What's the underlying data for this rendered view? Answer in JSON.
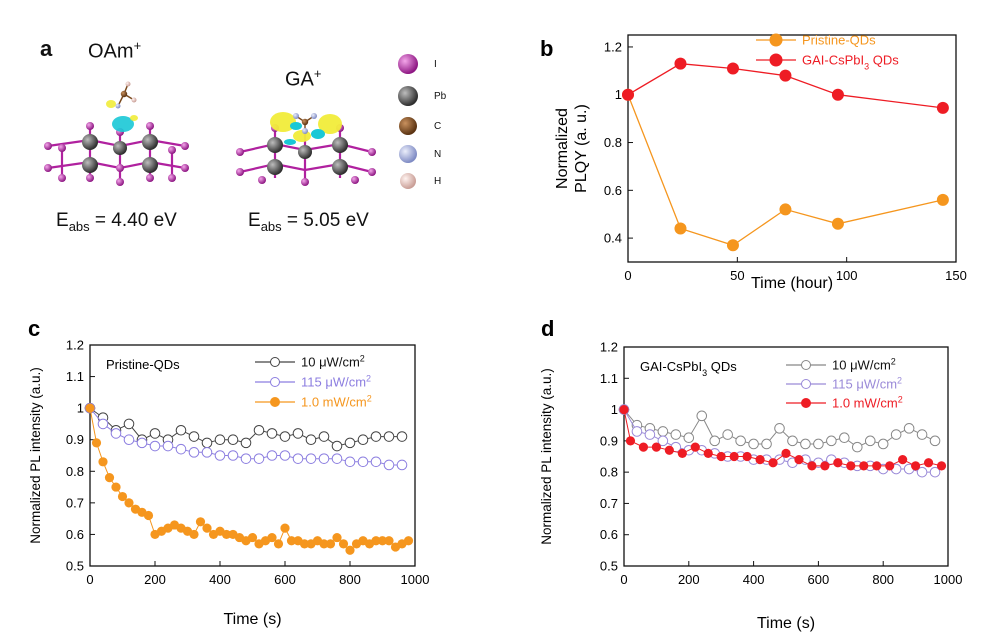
{
  "panel_a": {
    "letter": "a",
    "mol1_label": "OAm",
    "mol1_sup": "+",
    "mol2_label": "GA",
    "mol2_sup": "+",
    "energy1_prefix": "E",
    "energy1_sub": "abs",
    "energy1_value": " = 4.40 eV",
    "energy2_prefix": "E",
    "energy2_sub": "abs",
    "energy2_value": " = 5.05 eV",
    "legend": [
      {
        "element": "I",
        "color": "#b0219f"
      },
      {
        "element": "Pb",
        "color": "#555555"
      },
      {
        "element": "C",
        "color": "#7a4a1e"
      },
      {
        "element": "N",
        "color": "#a8b3e0"
      },
      {
        "element": "H",
        "color": "#e8c4bd"
      }
    ]
  },
  "chart_data": [
    {
      "panel": "b",
      "type": "line",
      "xlabel": "Time (hour)",
      "ylabel": "Normalized PLQY (a. u.)",
      "xlim": [
        0,
        150
      ],
      "ylim": [
        0.3,
        1.25
      ],
      "xticks": [
        0,
        50,
        100,
        150
      ],
      "yticks": [
        0.4,
        0.6,
        0.8,
        1,
        1.2
      ],
      "ytick_labels": [
        "0.4",
        "0.6",
        "0.8",
        "1",
        "1.2"
      ],
      "legend_position": "top-right",
      "series": [
        {
          "name": "Pristine-QDs",
          "color": "#f5961e",
          "x": [
            0,
            24,
            48,
            72,
            96,
            144
          ],
          "y": [
            1.0,
            0.44,
            0.37,
            0.52,
            0.46,
            0.56
          ]
        },
        {
          "name": "GAI-CsPbI3 QDs",
          "color": "#ee1c24",
          "x": [
            0,
            24,
            48,
            72,
            96,
            144
          ],
          "y": [
            1.0,
            1.13,
            1.11,
            1.08,
            1.0,
            0.945
          ]
        }
      ]
    },
    {
      "panel": "c",
      "type": "line",
      "title": "Pristine-QDs",
      "xlabel": "Time (s)",
      "ylabel": "Normalized PL intensity (a.u.)",
      "xlim": [
        0,
        1000
      ],
      "ylim": [
        0.5,
        1.2
      ],
      "xticks": [
        0,
        200,
        400,
        600,
        800,
        1000
      ],
      "yticks": [
        0.5,
        0.6,
        0.7,
        0.8,
        0.9,
        1,
        1.1,
        1.2
      ],
      "ytick_labels": [
        "0.5",
        "0.6",
        "0.7",
        "0.8",
        "0.9",
        "1",
        "1.1",
        "1.2"
      ],
      "legend_position": "top-right",
      "series": [
        {
          "name": "10 μW/cm²",
          "color": "#444444",
          "marker": "open-circle",
          "x": [
            0,
            40,
            80,
            120,
            160,
            200,
            240,
            280,
            320,
            360,
            400,
            440,
            480,
            520,
            560,
            600,
            640,
            680,
            720,
            760,
            800,
            840,
            880,
            920,
            960
          ],
          "y": [
            1.0,
            0.97,
            0.93,
            0.95,
            0.9,
            0.92,
            0.9,
            0.93,
            0.91,
            0.89,
            0.9,
            0.9,
            0.89,
            0.93,
            0.92,
            0.91,
            0.92,
            0.9,
            0.91,
            0.88,
            0.89,
            0.9,
            0.91,
            0.91,
            0.91
          ]
        },
        {
          "name": "115 μW/cm²",
          "color": "#8c7ee0",
          "marker": "open-circle",
          "x": [
            0,
            40,
            80,
            120,
            160,
            200,
            240,
            280,
            320,
            360,
            400,
            440,
            480,
            520,
            560,
            600,
            640,
            680,
            720,
            760,
            800,
            840,
            880,
            920,
            960
          ],
          "y": [
            1.0,
            0.95,
            0.92,
            0.9,
            0.89,
            0.88,
            0.88,
            0.87,
            0.86,
            0.86,
            0.85,
            0.85,
            0.84,
            0.84,
            0.85,
            0.85,
            0.84,
            0.84,
            0.84,
            0.84,
            0.83,
            0.83,
            0.83,
            0.82,
            0.82
          ]
        },
        {
          "name": "1.0 mW/cm²",
          "color": "#f5961e",
          "marker": "filled-circle",
          "x": [
            0,
            20,
            40,
            60,
            80,
            100,
            120,
            140,
            160,
            180,
            200,
            220,
            240,
            260,
            280,
            300,
            320,
            340,
            360,
            380,
            400,
            420,
            440,
            460,
            480,
            500,
            520,
            540,
            560,
            580,
            600,
            620,
            640,
            660,
            680,
            700,
            720,
            740,
            760,
            780,
            800,
            820,
            840,
            860,
            880,
            900,
            920,
            940,
            960,
            980
          ],
          "y": [
            1.0,
            0.89,
            0.83,
            0.78,
            0.75,
            0.72,
            0.7,
            0.68,
            0.67,
            0.66,
            0.6,
            0.61,
            0.62,
            0.63,
            0.62,
            0.61,
            0.6,
            0.64,
            0.62,
            0.6,
            0.61,
            0.6,
            0.6,
            0.59,
            0.58,
            0.59,
            0.57,
            0.58,
            0.59,
            0.57,
            0.62,
            0.58,
            0.58,
            0.57,
            0.57,
            0.58,
            0.57,
            0.57,
            0.59,
            0.57,
            0.55,
            0.57,
            0.58,
            0.57,
            0.58,
            0.58,
            0.58,
            0.56,
            0.57,
            0.58
          ]
        }
      ]
    },
    {
      "panel": "d",
      "type": "line",
      "title": "GAI-CsPbI3 QDs",
      "xlabel": "Time (s)",
      "ylabel": "Normalized PL intensity (a.u.)",
      "xlim": [
        0,
        1000
      ],
      "ylim": [
        0.5,
        1.2
      ],
      "xticks": [
        0,
        200,
        400,
        600,
        800,
        1000
      ],
      "yticks": [
        0.5,
        0.6,
        0.7,
        0.8,
        0.9,
        1,
        1.1,
        1.2
      ],
      "ytick_labels": [
        "0.5",
        "0.6",
        "0.7",
        "0.8",
        "0.9",
        "1",
        "1.1",
        "1.2"
      ],
      "legend_position": "top-right",
      "series": [
        {
          "name": "10 μW/cm²",
          "color": "#888888",
          "marker": "open-circle",
          "x": [
            0,
            40,
            80,
            120,
            160,
            200,
            240,
            280,
            320,
            360,
            400,
            440,
            480,
            520,
            560,
            600,
            640,
            680,
            720,
            760,
            800,
            840,
            880,
            920,
            960
          ],
          "y": [
            1.0,
            0.95,
            0.94,
            0.93,
            0.92,
            0.91,
            0.98,
            0.9,
            0.92,
            0.9,
            0.89,
            0.89,
            0.94,
            0.9,
            0.89,
            0.89,
            0.9,
            0.91,
            0.88,
            0.9,
            0.89,
            0.92,
            0.94,
            0.92,
            0.9
          ]
        },
        {
          "name": "115 μW/cm²",
          "color": "#9a8ad8",
          "marker": "open-circle",
          "x": [
            0,
            40,
            80,
            120,
            160,
            200,
            240,
            280,
            320,
            360,
            400,
            440,
            480,
            520,
            560,
            600,
            640,
            680,
            720,
            760,
            800,
            840,
            880,
            920,
            960
          ],
          "y": [
            1.0,
            0.93,
            0.92,
            0.9,
            0.88,
            0.87,
            0.87,
            0.86,
            0.85,
            0.85,
            0.84,
            0.84,
            0.84,
            0.83,
            0.84,
            0.83,
            0.84,
            0.83,
            0.82,
            0.82,
            0.81,
            0.81,
            0.81,
            0.8,
            0.8
          ]
        },
        {
          "name": "1.0 mW/cm²",
          "color": "#ee1c24",
          "marker": "filled-circle",
          "x": [
            0,
            20,
            60,
            100,
            140,
            180,
            220,
            260,
            300,
            340,
            380,
            420,
            460,
            500,
            540,
            580,
            620,
            660,
            700,
            740,
            780,
            820,
            860,
            900,
            940,
            980
          ],
          "y": [
            1.0,
            0.9,
            0.88,
            0.88,
            0.87,
            0.86,
            0.88,
            0.86,
            0.85,
            0.85,
            0.85,
            0.84,
            0.83,
            0.86,
            0.84,
            0.82,
            0.82,
            0.83,
            0.82,
            0.82,
            0.82,
            0.82,
            0.84,
            0.82,
            0.83,
            0.82
          ]
        }
      ]
    }
  ]
}
